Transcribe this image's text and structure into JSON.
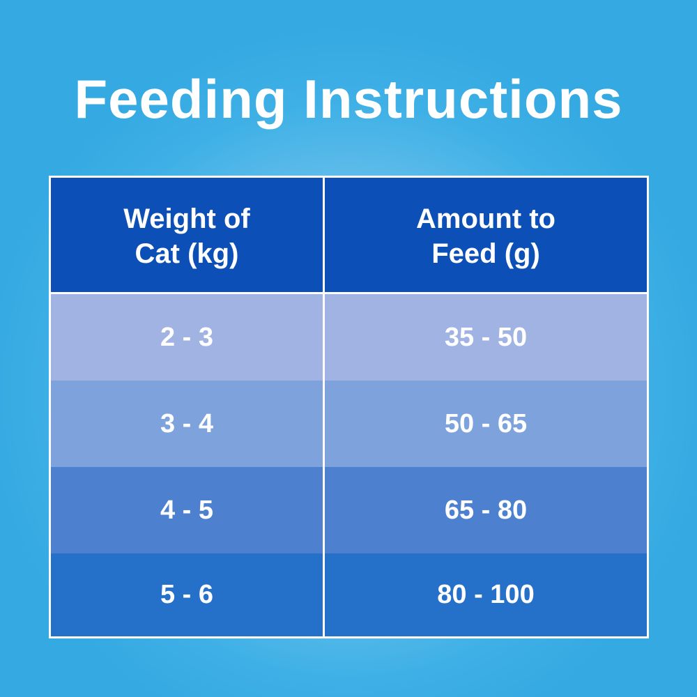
{
  "title": "Feeding Instructions",
  "table": {
    "headers": [
      {
        "line1": "Weight of",
        "line2": "Cat (kg)"
      },
      {
        "line1": "Amount to",
        "line2": "Feed (g)"
      }
    ],
    "rows": [
      {
        "weight": "2 - 3",
        "amount": "35 - 50"
      },
      {
        "weight": "3 - 4",
        "amount": "50 - 65"
      },
      {
        "weight": "4 - 5",
        "amount": "65 - 80"
      },
      {
        "weight": "5 - 6",
        "amount": "80 - 100"
      }
    ]
  },
  "colors": {
    "background": "#3aaee6",
    "header": "#0c4fb6",
    "row_1": "#a0b3e2",
    "row_2": "#7ea3dc",
    "row_3": "#4d81d0",
    "row_4": "#2570c8",
    "text": "#ffffff"
  }
}
